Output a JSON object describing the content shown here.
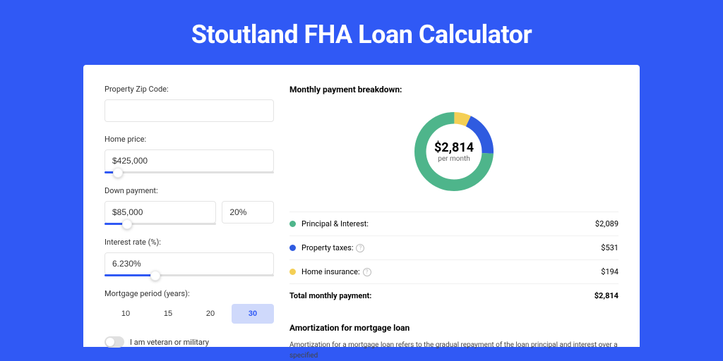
{
  "page_title": "Stoutland FHA Loan Calculator",
  "colors": {
    "page_bg": "#3059f5",
    "card_bg": "#ffffff",
    "accent": "#3059f5",
    "text": "#333333",
    "muted": "#666666",
    "border": "#e4e4e4"
  },
  "left": {
    "zip": {
      "label": "Property Zip Code:",
      "value": ""
    },
    "home_price": {
      "label": "Home price:",
      "value": "$425,000",
      "slider_pct": 8
    },
    "down_payment": {
      "label": "Down payment:",
      "amount": "$85,000",
      "pct": "20%",
      "slider_pct": 20
    },
    "interest_rate": {
      "label": "Interest rate (%):",
      "value": "6.230%",
      "slider_pct": 30
    },
    "mortgage_period": {
      "label": "Mortgage period (years):",
      "options": [
        "10",
        "15",
        "20",
        "30"
      ],
      "selected_index": 3
    },
    "veteran": {
      "label": "I am veteran or military",
      "on": false
    }
  },
  "right": {
    "breakdown_title": "Monthly payment breakdown:",
    "donut": {
      "value": "$2,814",
      "sub": "per month",
      "slices": [
        {
          "label": "Principal & Interest",
          "color": "#4eb58b",
          "pct": 74.2
        },
        {
          "label": "Property taxes",
          "color": "#2f5be0",
          "pct": 18.9
        },
        {
          "label": "Home insurance",
          "color": "#f4cf55",
          "pct": 6.9
        }
      ]
    },
    "rows": [
      {
        "swatch": "#4eb58b",
        "label": "Principal & Interest:",
        "help": false,
        "value": "$2,089"
      },
      {
        "swatch": "#2f5be0",
        "label": "Property taxes:",
        "help": true,
        "value": "$531"
      },
      {
        "swatch": "#f4cf55",
        "label": "Home insurance:",
        "help": true,
        "value": "$194"
      }
    ],
    "total": {
      "label": "Total monthly payment:",
      "value": "$2,814"
    },
    "amort_title": "Amortization for mortgage loan",
    "amort_text": "Amortization for a mortgage loan refers to the gradual repayment of the loan principal and interest over a specified"
  }
}
